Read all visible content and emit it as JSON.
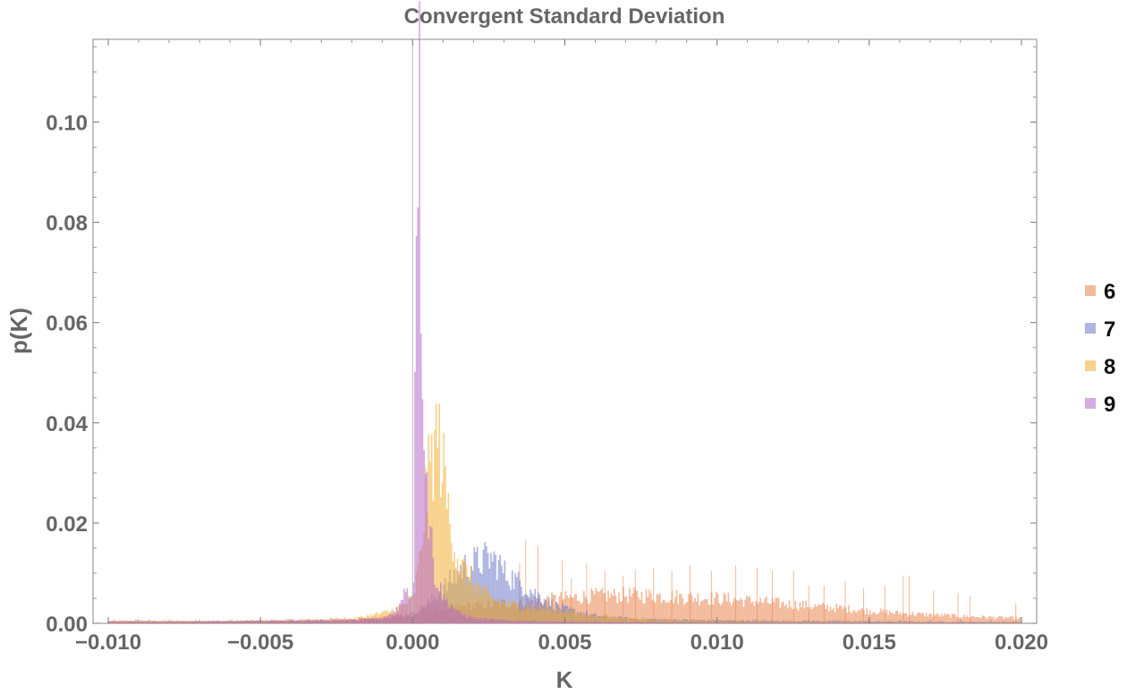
{
  "chart_data": {
    "type": "bar",
    "subtype": "overlaid-histogram",
    "title": "Convergent Standard Deviation",
    "xlabel": "K",
    "ylabel": "p(K)",
    "xlim": [
      -0.0105,
      0.0205
    ],
    "ylim": [
      0,
      0.1165
    ],
    "xticks": [
      -0.01,
      -0.005,
      0.0,
      0.005,
      0.01,
      0.015,
      0.02
    ],
    "xtick_labels": [
      "−0.010",
      "−0.005",
      "0.000",
      "0.005",
      "0.010",
      "0.015",
      "0.020"
    ],
    "yticks": [
      0.0,
      0.02,
      0.04,
      0.06,
      0.08,
      0.1
    ],
    "ytick_labels": [
      "0.00",
      "0.02",
      "0.04",
      "0.06",
      "0.08",
      "0.10"
    ],
    "bin_width": 5e-05,
    "grid": false,
    "legend_position": "right",
    "opacity": 0.55,
    "series": [
      {
        "name": "6",
        "color": "#e9844d",
        "points": [
          [
            -0.01,
            0.0005
          ],
          [
            -0.009,
            0.0006
          ],
          [
            -0.008,
            0.0005
          ],
          [
            -0.007,
            0.0005
          ],
          [
            -0.006,
            0.0005
          ],
          [
            -0.005,
            0.0006
          ],
          [
            -0.004,
            0.0007
          ],
          [
            -0.003,
            0.0008
          ],
          [
            -0.002,
            0.001
          ],
          [
            -0.001,
            0.0012
          ],
          [
            -0.0005,
            0.0015
          ],
          [
            0.0,
            0.002
          ],
          [
            0.0002,
            0.0025
          ],
          [
            0.0005,
            0.003
          ],
          [
            0.001,
            0.003
          ],
          [
            0.0015,
            0.0032
          ],
          [
            0.002,
            0.0035
          ],
          [
            0.003,
            0.004
          ],
          [
            0.004,
            0.0045
          ],
          [
            0.005,
            0.005
          ],
          [
            0.006,
            0.0055
          ],
          [
            0.007,
            0.0056
          ],
          [
            0.008,
            0.0055
          ],
          [
            0.009,
            0.0052
          ],
          [
            0.01,
            0.005
          ],
          [
            0.011,
            0.0045
          ],
          [
            0.012,
            0.004
          ],
          [
            0.013,
            0.0035
          ],
          [
            0.014,
            0.003
          ],
          [
            0.015,
            0.0025
          ],
          [
            0.016,
            0.002
          ],
          [
            0.017,
            0.0017
          ],
          [
            0.018,
            0.0014
          ],
          [
            0.019,
            0.0012
          ],
          [
            0.02,
            0.001
          ]
        ],
        "spikes": [
          [
            0.0037,
            0.0165
          ],
          [
            0.0041,
            0.0155
          ],
          [
            0.0035,
            0.012
          ],
          [
            0.0049,
            0.0125
          ],
          [
            0.0052,
            0.009
          ],
          [
            0.0057,
            0.012
          ],
          [
            0.0063,
            0.0105
          ],
          [
            0.0069,
            0.0095
          ],
          [
            0.0073,
            0.0105
          ],
          [
            0.0079,
            0.011
          ],
          [
            0.0085,
            0.0105
          ],
          [
            0.0091,
            0.0115
          ],
          [
            0.0098,
            0.0105
          ],
          [
            0.0106,
            0.0115
          ],
          [
            0.0113,
            0.011
          ],
          [
            0.0118,
            0.0105
          ],
          [
            0.0125,
            0.0105
          ],
          [
            0.013,
            0.0075
          ],
          [
            0.0135,
            0.0075
          ],
          [
            0.0142,
            0.0085
          ],
          [
            0.0148,
            0.007
          ],
          [
            0.0155,
            0.0075
          ],
          [
            0.0161,
            0.0095
          ],
          [
            0.0163,
            0.0095
          ],
          [
            0.0171,
            0.0065
          ],
          [
            0.0179,
            0.006
          ],
          [
            0.0183,
            0.0055
          ],
          [
            0.0198,
            0.004
          ]
        ]
      },
      {
        "name": "7",
        "color": "#6b79c9",
        "points": [
          [
            -0.01,
            0.0003
          ],
          [
            -0.008,
            0.0003
          ],
          [
            -0.006,
            0.0004
          ],
          [
            -0.004,
            0.0005
          ],
          [
            -0.002,
            0.0006
          ],
          [
            -0.001,
            0.001
          ],
          [
            -0.0005,
            0.0015
          ],
          [
            0.0,
            0.002
          ],
          [
            0.0005,
            0.004
          ],
          [
            0.001,
            0.007
          ],
          [
            0.0013,
            0.009
          ],
          [
            0.0016,
            0.011
          ],
          [
            0.002,
            0.012
          ],
          [
            0.0025,
            0.013
          ],
          [
            0.0028,
            0.012
          ],
          [
            0.003,
            0.01
          ],
          [
            0.0035,
            0.008
          ],
          [
            0.004,
            0.006
          ],
          [
            0.0045,
            0.004
          ],
          [
            0.005,
            0.0028
          ],
          [
            0.006,
            0.0015
          ],
          [
            0.007,
            0.001
          ],
          [
            0.008,
            0.0008
          ],
          [
            0.01,
            0.0006
          ],
          [
            0.012,
            0.0005
          ],
          [
            0.015,
            0.0004
          ],
          [
            0.018,
            0.0003
          ],
          [
            0.02,
            0.0003
          ]
        ],
        "spikes": []
      },
      {
        "name": "8",
        "color": "#f2ae31",
        "points": [
          [
            -0.01,
            0.0003
          ],
          [
            -0.008,
            0.0004
          ],
          [
            -0.006,
            0.0004
          ],
          [
            -0.004,
            0.0005
          ],
          [
            -0.003,
            0.0006
          ],
          [
            -0.002,
            0.0008
          ],
          [
            -0.0015,
            0.0015
          ],
          [
            -0.001,
            0.002
          ],
          [
            -0.0005,
            0.003
          ],
          [
            0.0,
            0.005
          ],
          [
            0.0002,
            0.012
          ],
          [
            0.0004,
            0.025
          ],
          [
            0.0006,
            0.033
          ],
          [
            0.0008,
            0.038
          ],
          [
            0.001,
            0.03
          ],
          [
            0.0012,
            0.02
          ],
          [
            0.0015,
            0.012
          ],
          [
            0.002,
            0.008
          ],
          [
            0.0025,
            0.005
          ],
          [
            0.003,
            0.004
          ],
          [
            0.004,
            0.003
          ],
          [
            0.005,
            0.0025
          ],
          [
            0.006,
            0.0015
          ],
          [
            0.008,
            0.0008
          ],
          [
            0.01,
            0.0005
          ],
          [
            0.015,
            0.0003
          ],
          [
            0.02,
            0.0002
          ]
        ],
        "spikes": []
      },
      {
        "name": "9",
        "color": "#b366c9",
        "points": [
          [
            -0.01,
            0.0003
          ],
          [
            -0.008,
            0.0003
          ],
          [
            -0.006,
            0.0004
          ],
          [
            -0.004,
            0.0005
          ],
          [
            -0.003,
            0.0006
          ],
          [
            -0.002,
            0.0007
          ],
          [
            -0.001,
            0.001
          ],
          [
            -0.0007,
            0.002
          ],
          [
            -0.0004,
            0.004
          ],
          [
            -0.0002,
            0.008
          ],
          [
            -0.0001,
            0.005
          ],
          [
            0.0,
            0.008
          ],
          [
            5e-05,
            0.06
          ],
          [
            0.0001,
            0.09
          ],
          [
            0.00015,
            0.11
          ],
          [
            0.0002,
            0.1
          ],
          [
            0.00025,
            0.075
          ],
          [
            0.0003,
            0.055
          ],
          [
            0.0004,
            0.035
          ],
          [
            0.0005,
            0.022
          ],
          [
            0.0007,
            0.01
          ],
          [
            0.001,
            0.005
          ],
          [
            0.0015,
            0.002
          ],
          [
            0.002,
            0.001
          ],
          [
            0.003,
            0.0006
          ],
          [
            0.005,
            0.0003
          ],
          [
            0.01,
            0.0002
          ],
          [
            0.02,
            0.0001
          ]
        ],
        "spikes": []
      }
    ]
  }
}
